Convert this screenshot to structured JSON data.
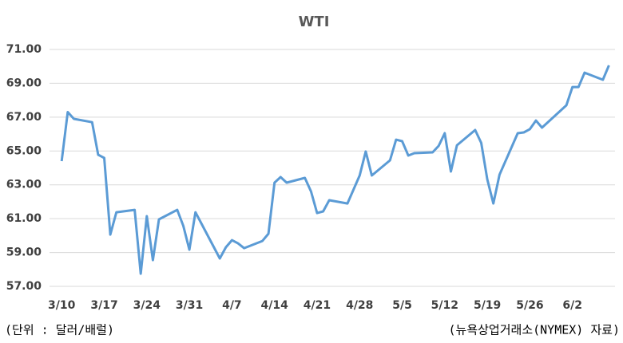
{
  "chart_data": {
    "type": "line",
    "title": "WTI",
    "x": [
      "3/10",
      "3/11",
      "3/12",
      "3/15",
      "3/16",
      "3/17",
      "3/18",
      "3/19",
      "3/22",
      "3/23",
      "3/24",
      "3/25",
      "3/26",
      "3/29",
      "3/30",
      "3/31",
      "4/1",
      "4/5",
      "4/6",
      "4/7",
      "4/8",
      "4/9",
      "4/12",
      "4/13",
      "4/14",
      "4/15",
      "4/16",
      "4/19",
      "4/20",
      "4/21",
      "4/22",
      "4/23",
      "4/26",
      "4/28",
      "4/29",
      "4/30",
      "5/3",
      "5/4",
      "5/5",
      "5/6",
      "5/7",
      "5/10",
      "5/11",
      "5/12",
      "5/13",
      "5/14",
      "5/17",
      "5/18",
      "5/19",
      "5/20",
      "5/21",
      "5/24",
      "5/25",
      "5/26",
      "5/27",
      "5/28",
      "6/1",
      "6/2",
      "6/3",
      "6/4",
      "6/7",
      "6/8"
    ],
    "series": [
      {
        "color": "#5b9bd5",
        "values": [
          64.4,
          67.3,
          66.9,
          66.7,
          64.78,
          64.59,
          60.06,
          61.38,
          61.52,
          57.75,
          61.15,
          58.55,
          60.96,
          61.52,
          60.58,
          59.17,
          61.38,
          58.65,
          59.31,
          59.73,
          59.54,
          59.26,
          59.68,
          60.11,
          63.13,
          63.46,
          63.13,
          63.41,
          62.61,
          61.33,
          61.43,
          62.09,
          61.9,
          63.55,
          64.97,
          63.55,
          64.45,
          65.67,
          65.58,
          64.73,
          64.87,
          64.92,
          65.3,
          66.05,
          63.79,
          65.34,
          66.24,
          65.48,
          63.32,
          61.9,
          63.6,
          66.05,
          66.1,
          66.29,
          66.8,
          66.38,
          67.7,
          68.78,
          68.78,
          69.63,
          69.21,
          70.06
        ]
      }
    ],
    "xlim": [
      "3/8",
      "6/9"
    ],
    "xticks": [
      "3/10",
      "3/17",
      "3/24",
      "3/31",
      "4/7",
      "4/14",
      "4/21",
      "4/28",
      "5/5",
      "5/12",
      "5/19",
      "5/26",
      "6/2"
    ],
    "ylim": [
      57,
      71
    ],
    "yticks": [
      {
        "value": 57,
        "label": "57.00"
      },
      {
        "value": 59,
        "label": "59.00"
      },
      {
        "value": 61,
        "label": "61.00"
      },
      {
        "value": 63,
        "label": "63.00"
      },
      {
        "value": 65,
        "label": "65.00"
      },
      {
        "value": 67,
        "label": "67.00"
      },
      {
        "value": 69,
        "label": "69.00"
      },
      {
        "value": 71,
        "label": "71.00"
      }
    ],
    "grid": true,
    "unit_note": "(단위 : 달러/배럴)",
    "source": "(뉴욕상업거래소(NYMEX) 자료)"
  }
}
